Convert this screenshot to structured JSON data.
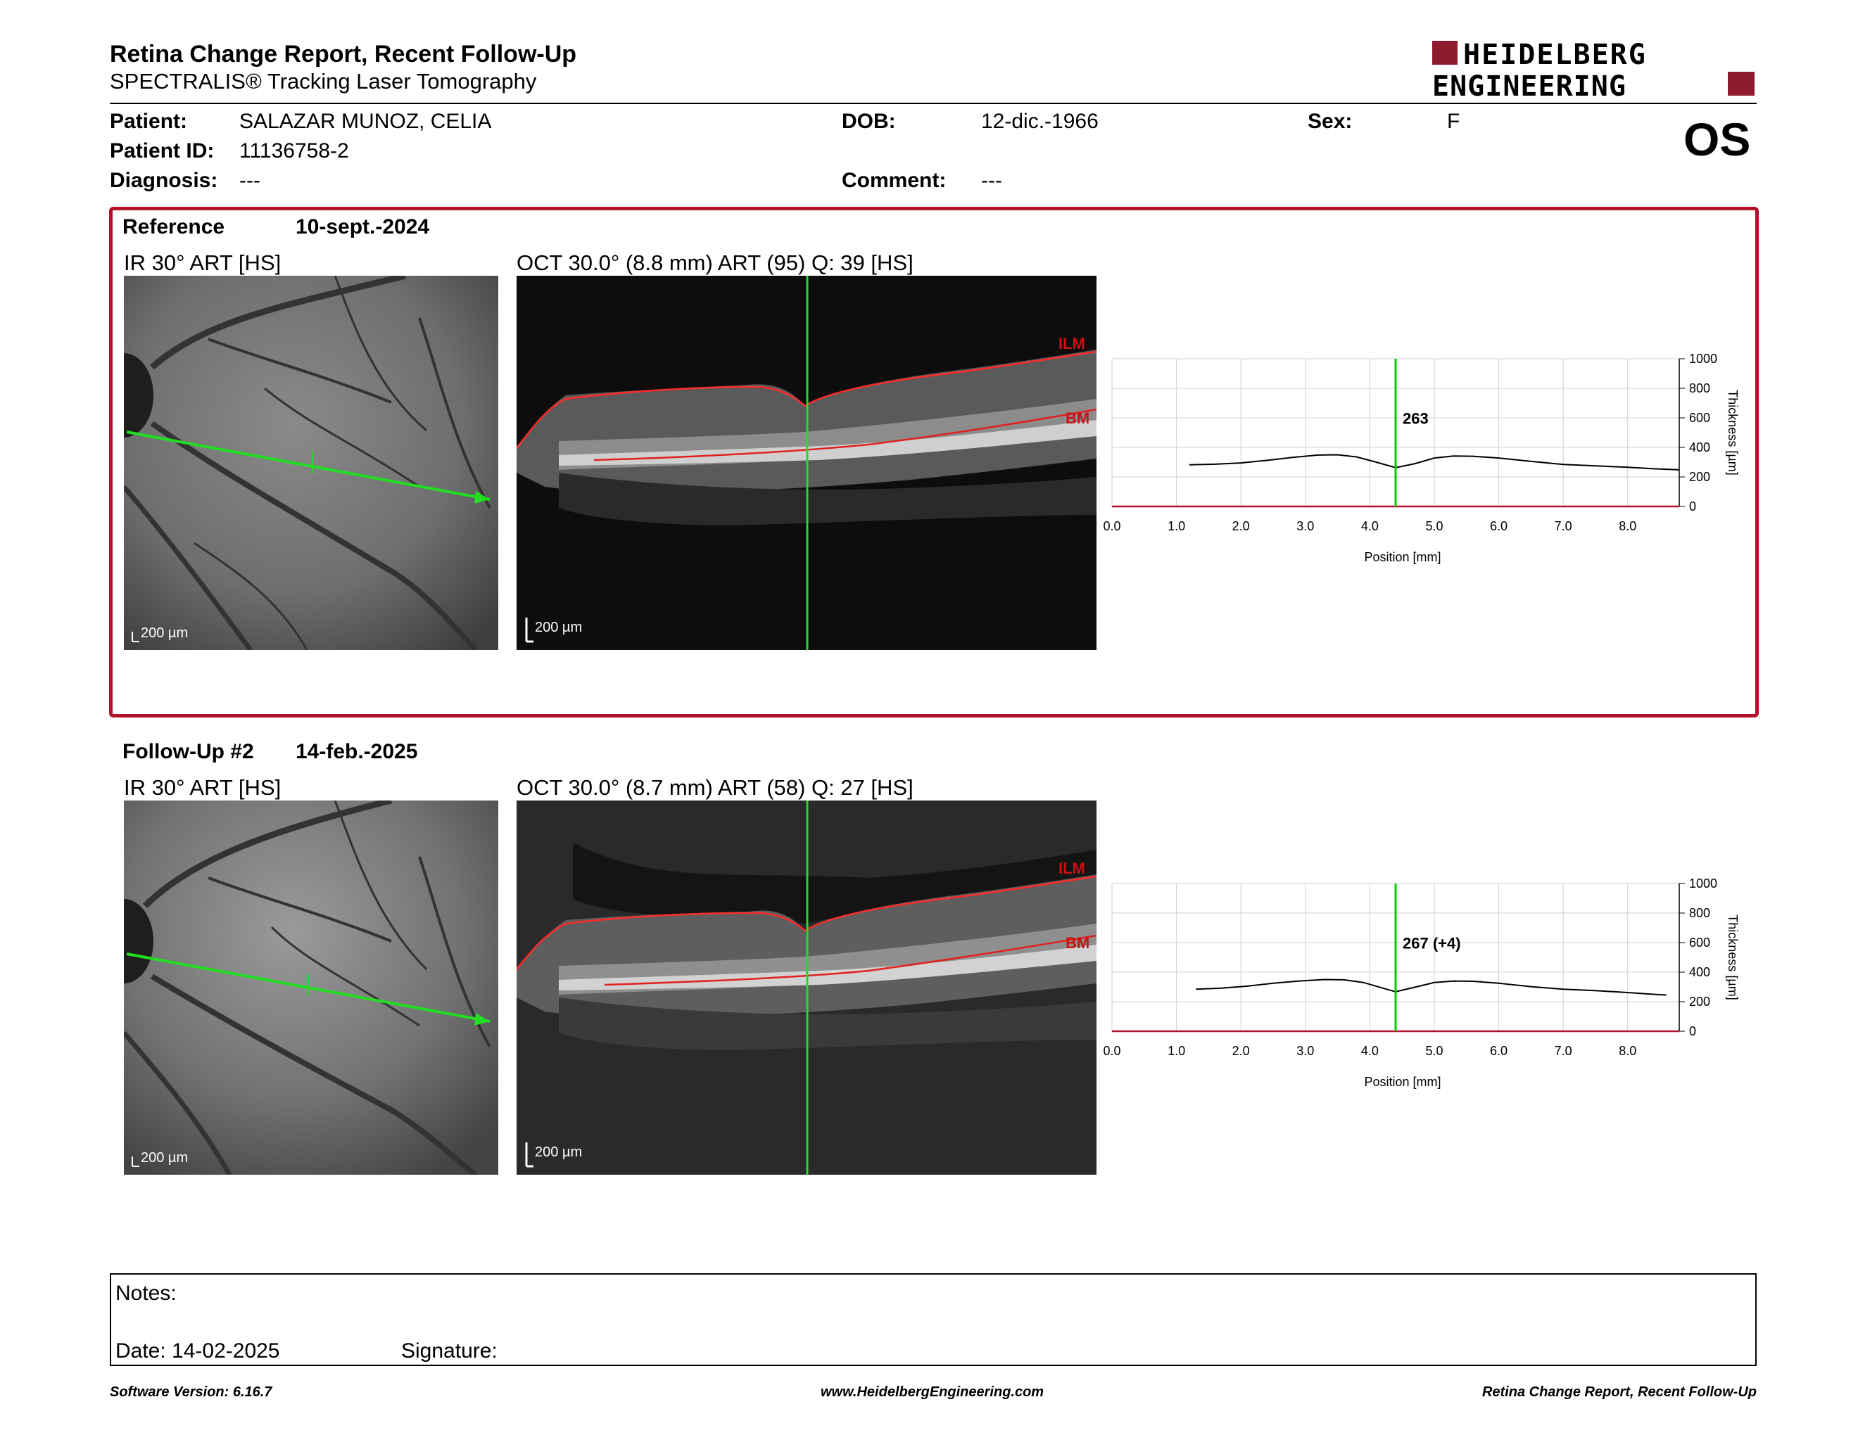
{
  "header": {
    "title": "Retina Change Report, Recent Follow-Up",
    "subtitle": "SPECTRALIS® Tracking Laser Tomography",
    "logo_line1": "HEIDELBERG",
    "logo_line2": "ENGINEERING",
    "eye": "OS"
  },
  "patient": {
    "patient_label": "Patient:",
    "patient_value": "SALAZAR MUNOZ, CELIA",
    "id_label": "Patient ID:",
    "id_value": "11136758-2",
    "diagnosis_label": "Diagnosis:",
    "diagnosis_value": "---",
    "dob_label": "DOB:",
    "dob_value": "12-dic.-1966",
    "comment_label": "Comment:",
    "comment_value": "---",
    "sex_label": "Sex:",
    "sex_value": "F"
  },
  "reference": {
    "label": "Reference",
    "date": "10-sept.-2024",
    "ir_caption": "IR 30° ART [HS]",
    "oct_caption": "OCT 30.0° (8.8 mm) ART (95) Q: 39 [HS]",
    "scale_ir": "200 µm",
    "scale_oct": "200 µm",
    "ilm": "ILM",
    "bm": "BM"
  },
  "followup": {
    "label": "Follow-Up #2",
    "date": "14-feb.-2025",
    "ir_caption": "IR 30° ART [HS]",
    "oct_caption": "OCT 30.0° (8.7 mm) ART (58) Q: 27 [HS]",
    "scale_ir": "200 µm",
    "scale_oct": "200 µm",
    "ilm": "ILM",
    "bm": "BM"
  },
  "chart_data": [
    {
      "type": "line",
      "xlabel": "Position [mm]",
      "ylabel": "Thickness [µm]",
      "xlim": [
        0,
        8.8
      ],
      "ylim": [
        0,
        1000
      ],
      "x_ticks": [
        "0.0",
        "1.0",
        "2.0",
        "3.0",
        "4.0",
        "5.0",
        "6.0",
        "7.0",
        "8.0"
      ],
      "y_ticks": [
        "0",
        "200",
        "400",
        "600",
        "800",
        "1000"
      ],
      "cursor_x": 4.4,
      "cursor_label": "263",
      "x": [
        1.2,
        1.6,
        2.0,
        2.4,
        2.8,
        3.2,
        3.5,
        3.8,
        4.1,
        4.4,
        4.7,
        5.0,
        5.3,
        5.6,
        6.0,
        6.5,
        7.0,
        7.5,
        8.0,
        8.4,
        8.8
      ],
      "y": [
        282,
        286,
        295,
        312,
        332,
        348,
        350,
        335,
        300,
        263,
        290,
        328,
        342,
        340,
        328,
        305,
        285,
        275,
        265,
        255,
        248
      ],
      "grid": true,
      "colors": {
        "line": "#000000",
        "cursor": "#00cc00",
        "axis": "#b3102a"
      }
    },
    {
      "type": "line",
      "xlabel": "Position [mm]",
      "ylabel": "Thickness [µm]",
      "xlim": [
        0,
        8.8
      ],
      "ylim": [
        0,
        1000
      ],
      "x_ticks": [
        "0.0",
        "1.0",
        "2.0",
        "3.0",
        "4.0",
        "5.0",
        "6.0",
        "7.0",
        "8.0"
      ],
      "y_ticks": [
        "0",
        "200",
        "400",
        "600",
        "800",
        "1000"
      ],
      "cursor_x": 4.4,
      "cursor_label": "267 (+4)",
      "x": [
        1.3,
        1.7,
        2.1,
        2.5,
        2.9,
        3.3,
        3.6,
        3.9,
        4.2,
        4.4,
        4.7,
        5.0,
        5.3,
        5.6,
        6.0,
        6.5,
        7.0,
        7.5,
        8.0,
        8.4,
        8.6
      ],
      "y": [
        285,
        292,
        305,
        325,
        340,
        350,
        348,
        330,
        292,
        267,
        298,
        330,
        340,
        338,
        325,
        302,
        285,
        275,
        262,
        250,
        245
      ],
      "grid": true,
      "colors": {
        "line": "#000000",
        "cursor": "#00cc00",
        "axis": "#b3102a"
      }
    }
  ],
  "notes": {
    "notes_label": "Notes:",
    "date_label": "Date: 14-02-2025",
    "signature_label": "Signature:"
  },
  "footer": {
    "software": "Software Version: 6.16.7",
    "url": "www.HeidelbergEngineering.com",
    "report": "Retina Change Report, Recent Follow-Up"
  }
}
